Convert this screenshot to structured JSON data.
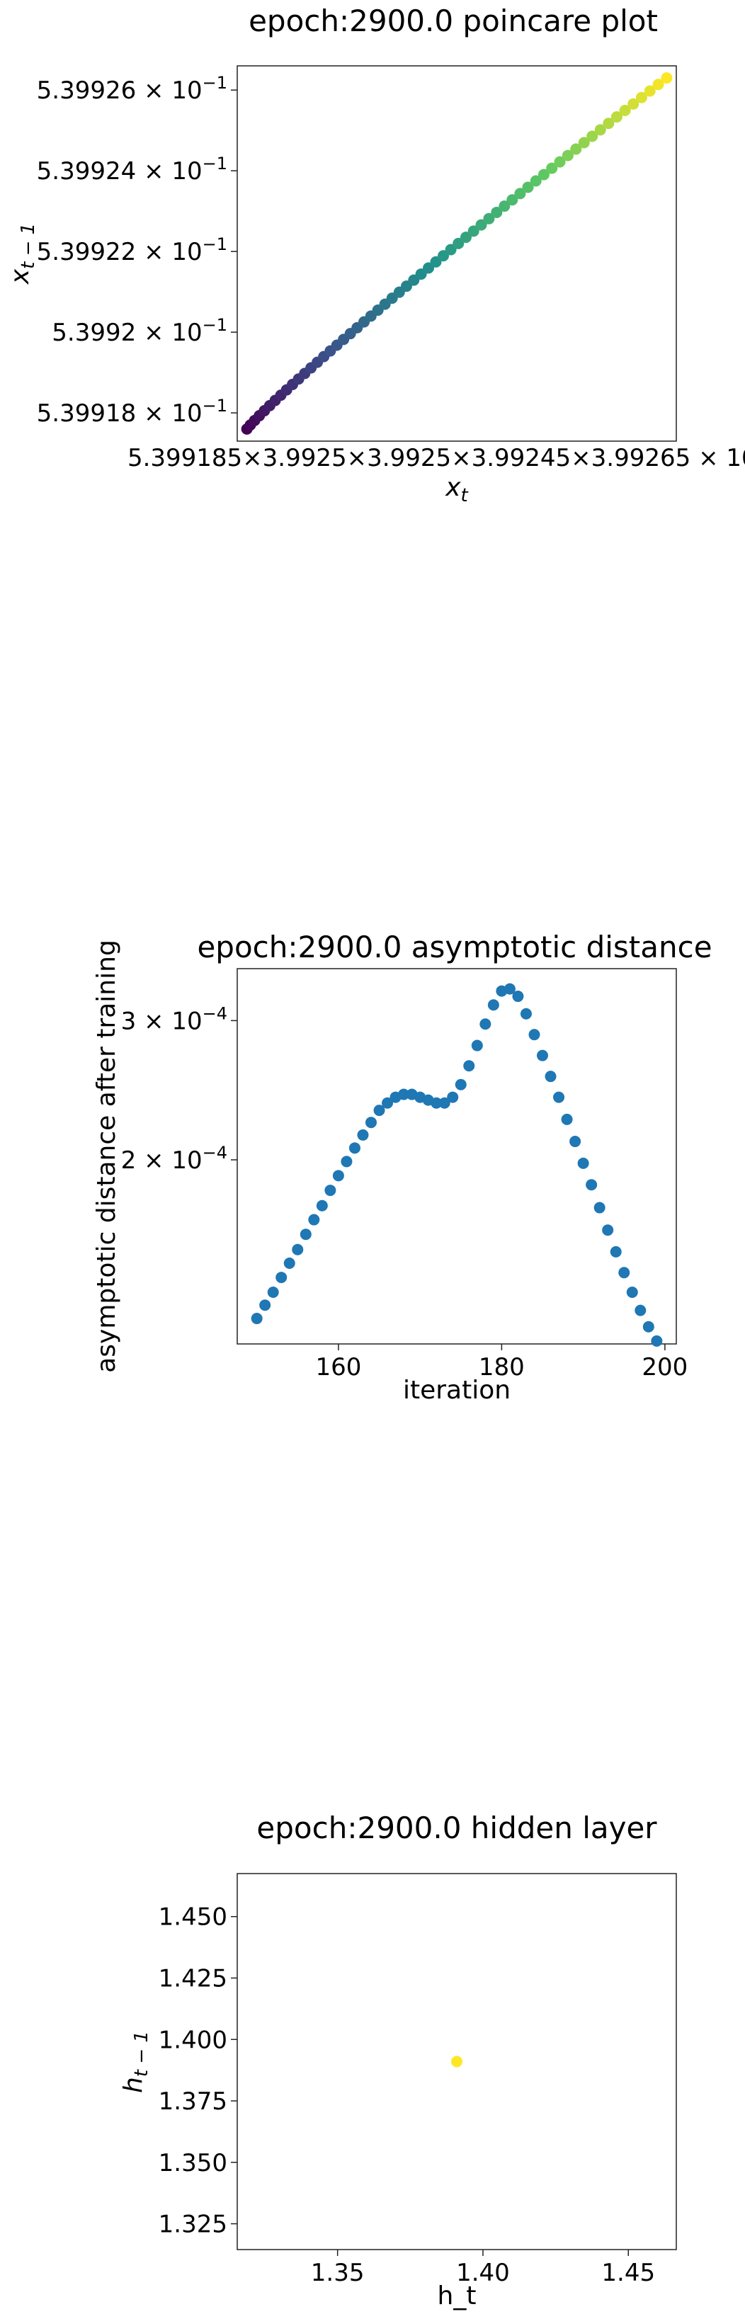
{
  "chart_data": [
    {
      "type": "scatter",
      "title": "epoch:2900.0 poincare plot",
      "xlabel_base": "x",
      "xlabel_sub": "t",
      "ylabel_base": "x",
      "ylabel_sub": "t − 1",
      "yticks": [
        "5.39918",
        "5.3992",
        "5.39922",
        "5.39924",
        "5.39926"
      ],
      "ytick_values": [
        0.539918,
        0.53992,
        0.539922,
        0.539924,
        0.539926
      ],
      "xtick_text": "5.399185×3.9925×3.9925×3.99245×3.99265",
      "tick_exponent": "10",
      "tick_power": "−1",
      "xlim": [
        0.5399174,
        0.5399265
      ],
      "ylim": [
        0.5399173,
        0.5399266
      ],
      "colormap": [
        "#440154",
        "#3b528b",
        "#21918c",
        "#5ec962",
        "#fde725"
      ],
      "points": {
        "n": 60,
        "x_start": 0.5399176,
        "x_end": 0.5399263,
        "y_start": 0.5399176,
        "y_end": 0.5399263,
        "curve_exponent": 1.18
      }
    },
    {
      "type": "scatter",
      "title": "epoch:2900.0 asymptotic distance",
      "xlabel": "iteration",
      "ylabel": "asymptotic distance after training",
      "xticks": [
        "160",
        "180",
        "200"
      ],
      "xtick_values": [
        160,
        180,
        200
      ],
      "yticks_mantissa": [
        "2",
        "3"
      ],
      "ytick_values": [
        0.0002,
        0.0003
      ],
      "tick_exponent": "10",
      "tick_power": "−4",
      "yscale": "log",
      "xlim": [
        147.6,
        201.4
      ],
      "ylim": [
        0.000117,
        0.000349
      ],
      "color": "#1f77b4",
      "x": [
        150,
        151,
        152,
        153,
        154,
        155,
        156,
        157,
        158,
        159,
        160,
        161,
        162,
        163,
        164,
        165,
        166,
        167,
        168,
        169,
        170,
        171,
        172,
        173,
        174,
        175,
        176,
        177,
        178,
        179,
        180,
        181,
        182,
        183,
        184,
        185,
        186,
        187,
        188,
        189,
        190,
        191,
        192,
        193,
        194,
        195,
        196,
        197,
        198,
        199
      ],
      "y": [
        0.000126,
        0.000131,
        0.000136,
        0.000142,
        0.000148,
        0.000154,
        0.000161,
        0.000168,
        0.000175,
        0.000183,
        0.000191,
        0.000199,
        0.000207,
        0.000215,
        0.000223,
        0.000231,
        0.000236,
        0.00024,
        0.000242,
        0.000242,
        0.00024,
        0.000238,
        0.000236,
        0.000236,
        0.00024,
        0.000249,
        0.000263,
        0.000279,
        0.000297,
        0.000314,
        0.000327,
        0.000329,
        0.000322,
        0.000306,
        0.000288,
        0.000271,
        0.000255,
        0.00024,
        0.000225,
        0.000211,
        0.000198,
        0.000186,
        0.000174,
        0.000163,
        0.000153,
        0.000144,
        0.000136,
        0.000129,
        0.000123,
        0.000118
      ]
    },
    {
      "type": "scatter",
      "title": "epoch:2900.0 hidden layer",
      "xlabel": "h_t",
      "ylabel_base": "h",
      "ylabel_sub": "t − 1",
      "xticks": [
        "1.35",
        "1.40",
        "1.45"
      ],
      "xtick_values": [
        1.35,
        1.4,
        1.45
      ],
      "yticks": [
        "1.325",
        "1.350",
        "1.375",
        "1.400",
        "1.425",
        "1.450"
      ],
      "ytick_values": [
        1.325,
        1.35,
        1.375,
        1.4,
        1.425,
        1.45
      ],
      "xlim": [
        1.3155,
        1.4665
      ],
      "ylim": [
        1.3145,
        1.4675
      ],
      "color": "#fde725",
      "x": [
        1.391
      ],
      "y": [
        1.391
      ]
    }
  ]
}
